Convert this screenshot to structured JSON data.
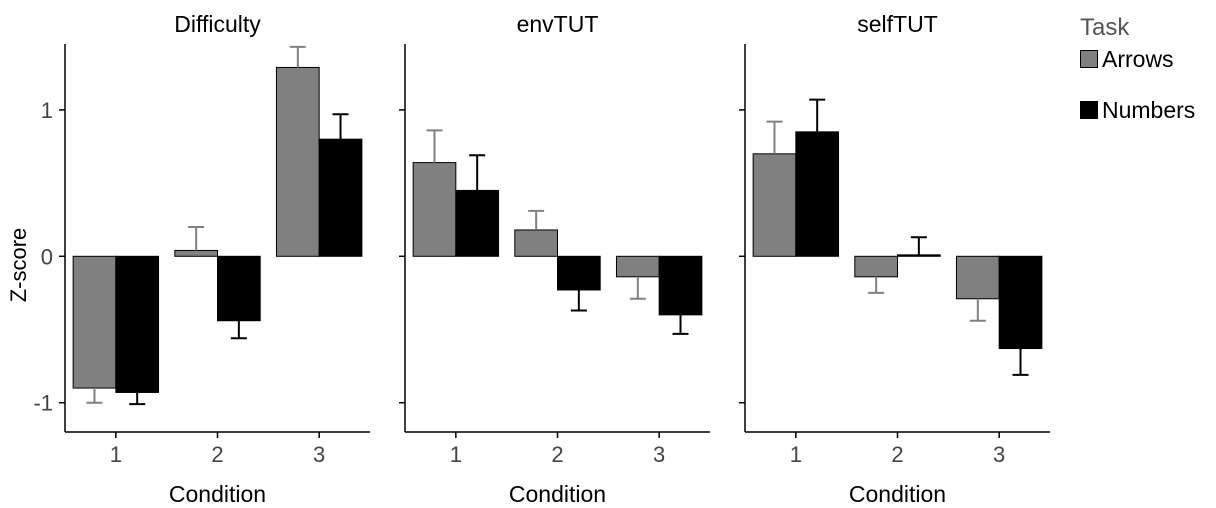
{
  "chart_data": {
    "type": "bar",
    "ylabel": "Z-score",
    "xlabel": "Condition",
    "categories": [
      "1",
      "2",
      "3"
    ],
    "y_ticks": [
      -1,
      0,
      1
    ],
    "y_tick_labels": [
      "-1",
      "0",
      "1"
    ],
    "ylim": [
      -1.2,
      1.45
    ],
    "grid": false,
    "legend_position": "right",
    "legend_title": "Task",
    "series_names": [
      "Arrows",
      "Numbers"
    ],
    "series_colors": [
      "#808080",
      "#000000"
    ],
    "error_colors": [
      "#808080",
      "#000000"
    ],
    "panels": [
      {
        "title": "Difficulty",
        "series": [
          {
            "name": "Arrows",
            "values": [
              -0.9,
              0.04,
              1.29
            ],
            "errors": [
              0.1,
              0.16,
              0.14
            ]
          },
          {
            "name": "Numbers",
            "values": [
              -0.93,
              -0.44,
              0.8
            ],
            "errors": [
              0.08,
              0.12,
              0.17
            ]
          }
        ]
      },
      {
        "title": "envTUT",
        "series": [
          {
            "name": "Arrows",
            "values": [
              0.64,
              0.18,
              -0.14
            ],
            "errors": [
              0.22,
              0.13,
              0.15
            ]
          },
          {
            "name": "Numbers",
            "values": [
              0.45,
              -0.23,
              -0.4
            ],
            "errors": [
              0.24,
              0.14,
              0.13
            ]
          }
        ]
      },
      {
        "title": "selfTUT",
        "series": [
          {
            "name": "Arrows",
            "values": [
              0.7,
              -0.14,
              -0.29
            ],
            "errors": [
              0.22,
              0.11,
              0.15
            ]
          },
          {
            "name": "Numbers",
            "values": [
              0.85,
              0.01,
              -0.63
            ],
            "errors": [
              0.22,
              0.12,
              0.18
            ]
          }
        ]
      }
    ]
  }
}
